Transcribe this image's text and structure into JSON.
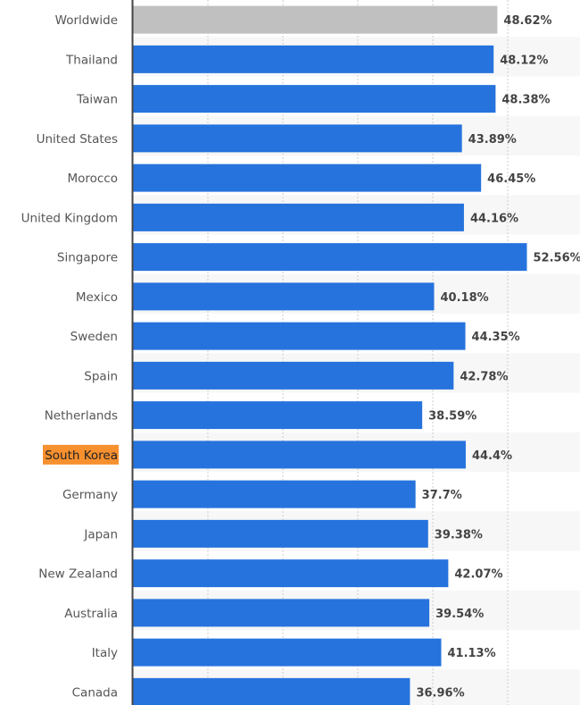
{
  "chart_data": {
    "type": "bar",
    "orientation": "horizontal",
    "title": "",
    "xlabel": "",
    "ylabel": "",
    "xlim": [
      0,
      60
    ],
    "grid": true,
    "value_suffix": "%",
    "categories": [
      "Worldwide",
      "Thailand",
      "Taiwan",
      "United States",
      "Morocco",
      "United Kingdom",
      "Singapore",
      "Mexico",
      "Sweden",
      "Spain",
      "Netherlands",
      "South Korea",
      "Germany",
      "Japan",
      "New Zealand",
      "Australia",
      "Italy",
      "Canada"
    ],
    "values": [
      48.62,
      48.12,
      48.38,
      43.89,
      46.45,
      44.16,
      52.56,
      40.18,
      44.35,
      42.78,
      38.59,
      44.4,
      37.7,
      39.38,
      42.07,
      39.54,
      41.13,
      36.96
    ],
    "labels": [
      "48.62%",
      "48.12%",
      "48.38%",
      "43.89%",
      "46.45%",
      "44.16%",
      "52.56%",
      "40.18%",
      "44.35%",
      "42.78%",
      "38.59%",
      "44.4%",
      "37.7%",
      "39.38%",
      "42.07%",
      "39.54%",
      "41.13%",
      "36.96%"
    ],
    "highlighted_category": "South Korea",
    "colors": {
      "default": "#2673dd",
      "worldwide": "#c0c0c0",
      "highlight_label_bg": "#f7902f",
      "row_alt": "#f7f7f7",
      "grid": "#cccccc",
      "axis": "#444444"
    }
  }
}
